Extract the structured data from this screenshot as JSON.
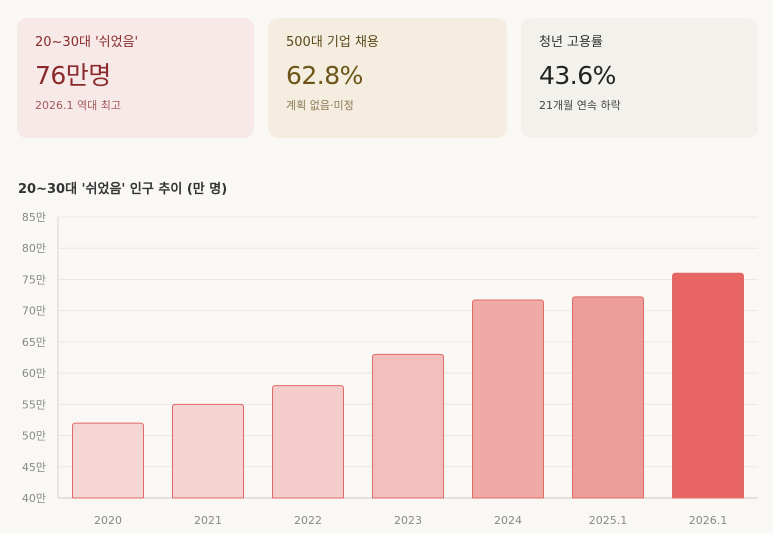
{
  "cards": [
    {
      "label": "20~30대 '쉬었음'",
      "value": "76만명",
      "note": "2026.1 역대 최고",
      "label_color": "#8a2a2a",
      "value_color": "#8a2a2a",
      "note_color": "#a05a5a"
    },
    {
      "label": "500대 기업 채용",
      "value": "62.8%",
      "note": "계획 없음·미정",
      "label_color": "#5a4a1c",
      "value_color": "#6b5518",
      "note_color": "#8a7a55"
    },
    {
      "label": "청년 고용률",
      "value": "43.6%",
      "note": "21개월 연속 하락",
      "label_color": "#333333",
      "value_color": "#222222",
      "note_color": "#444444"
    }
  ],
  "chart_data": {
    "type": "bar",
    "title": "20~30대 '쉬었음' 인구 추이 (만 명)",
    "categories": [
      "2020",
      "2021",
      "2022",
      "2023",
      "2024",
      "2025.1",
      "2026.1"
    ],
    "values": [
      52,
      55,
      58,
      63,
      71.7,
      72.2,
      76
    ],
    "ylim": [
      40,
      85
    ],
    "y_ticks": [
      "40만",
      "45만",
      "50만",
      "55만",
      "60만",
      "65만",
      "70만",
      "75만",
      "80만",
      "85만"
    ],
    "grid": true,
    "bar_colors": [
      "#f5d6d4",
      "#f5d3d1",
      "#f4cdca",
      "#f2bfbc",
      "#efaaa8",
      "#ec9c99",
      "#e76663"
    ],
    "bar_stroke": "#e06a66"
  }
}
